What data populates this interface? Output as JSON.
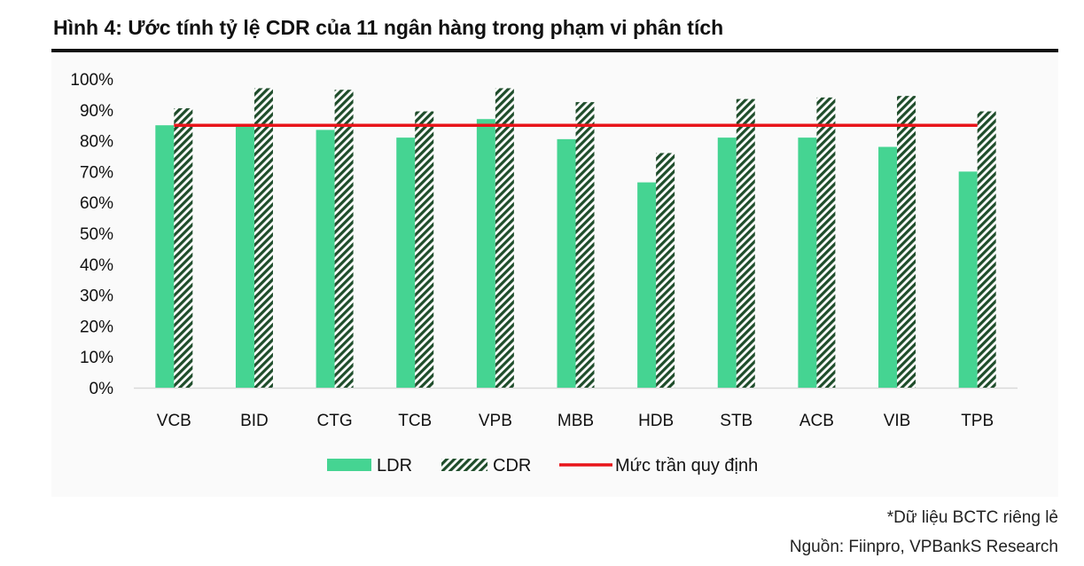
{
  "figure": {
    "title": "Hình 4: Ước tính tỷ lệ CDR của 11 ngân hàng trong phạm vi phân tích",
    "note": "*Dữ liệu BCTC riêng lẻ",
    "source": "Nguồn: Fiinpro, VPBankS Research"
  },
  "colors": {
    "ldr": "#45d492",
    "cdr_stripe_dark": "#1f4d2b",
    "cdr_stripe_light": "#ffffff",
    "cap_line": "#e8141a",
    "axis": "#d9d9d9"
  },
  "chart_data": {
    "type": "bar",
    "categories": [
      "VCB",
      "BID",
      "CTG",
      "TCB",
      "VPB",
      "MBB",
      "HDB",
      "STB",
      "ACB",
      "VIB",
      "TPB"
    ],
    "series": [
      {
        "name": "LDR",
        "style": "solid",
        "values": [
          85,
          85,
          83.5,
          81,
          87,
          80.5,
          66.5,
          81,
          81,
          78,
          70
        ]
      },
      {
        "name": "CDR",
        "style": "hatched",
        "values": [
          90.5,
          97,
          96.5,
          89.5,
          97,
          92.5,
          76,
          93.5,
          94,
          94.5,
          89.5
        ]
      }
    ],
    "reference_line": {
      "name": "Mức trần quy định",
      "value": 85
    },
    "y_ticks": [
      "0%",
      "10%",
      "20%",
      "30%",
      "40%",
      "50%",
      "60%",
      "70%",
      "80%",
      "90%",
      "100%"
    ],
    "ylim": [
      0,
      100
    ],
    "grid": false,
    "legend_position": "bottom"
  }
}
